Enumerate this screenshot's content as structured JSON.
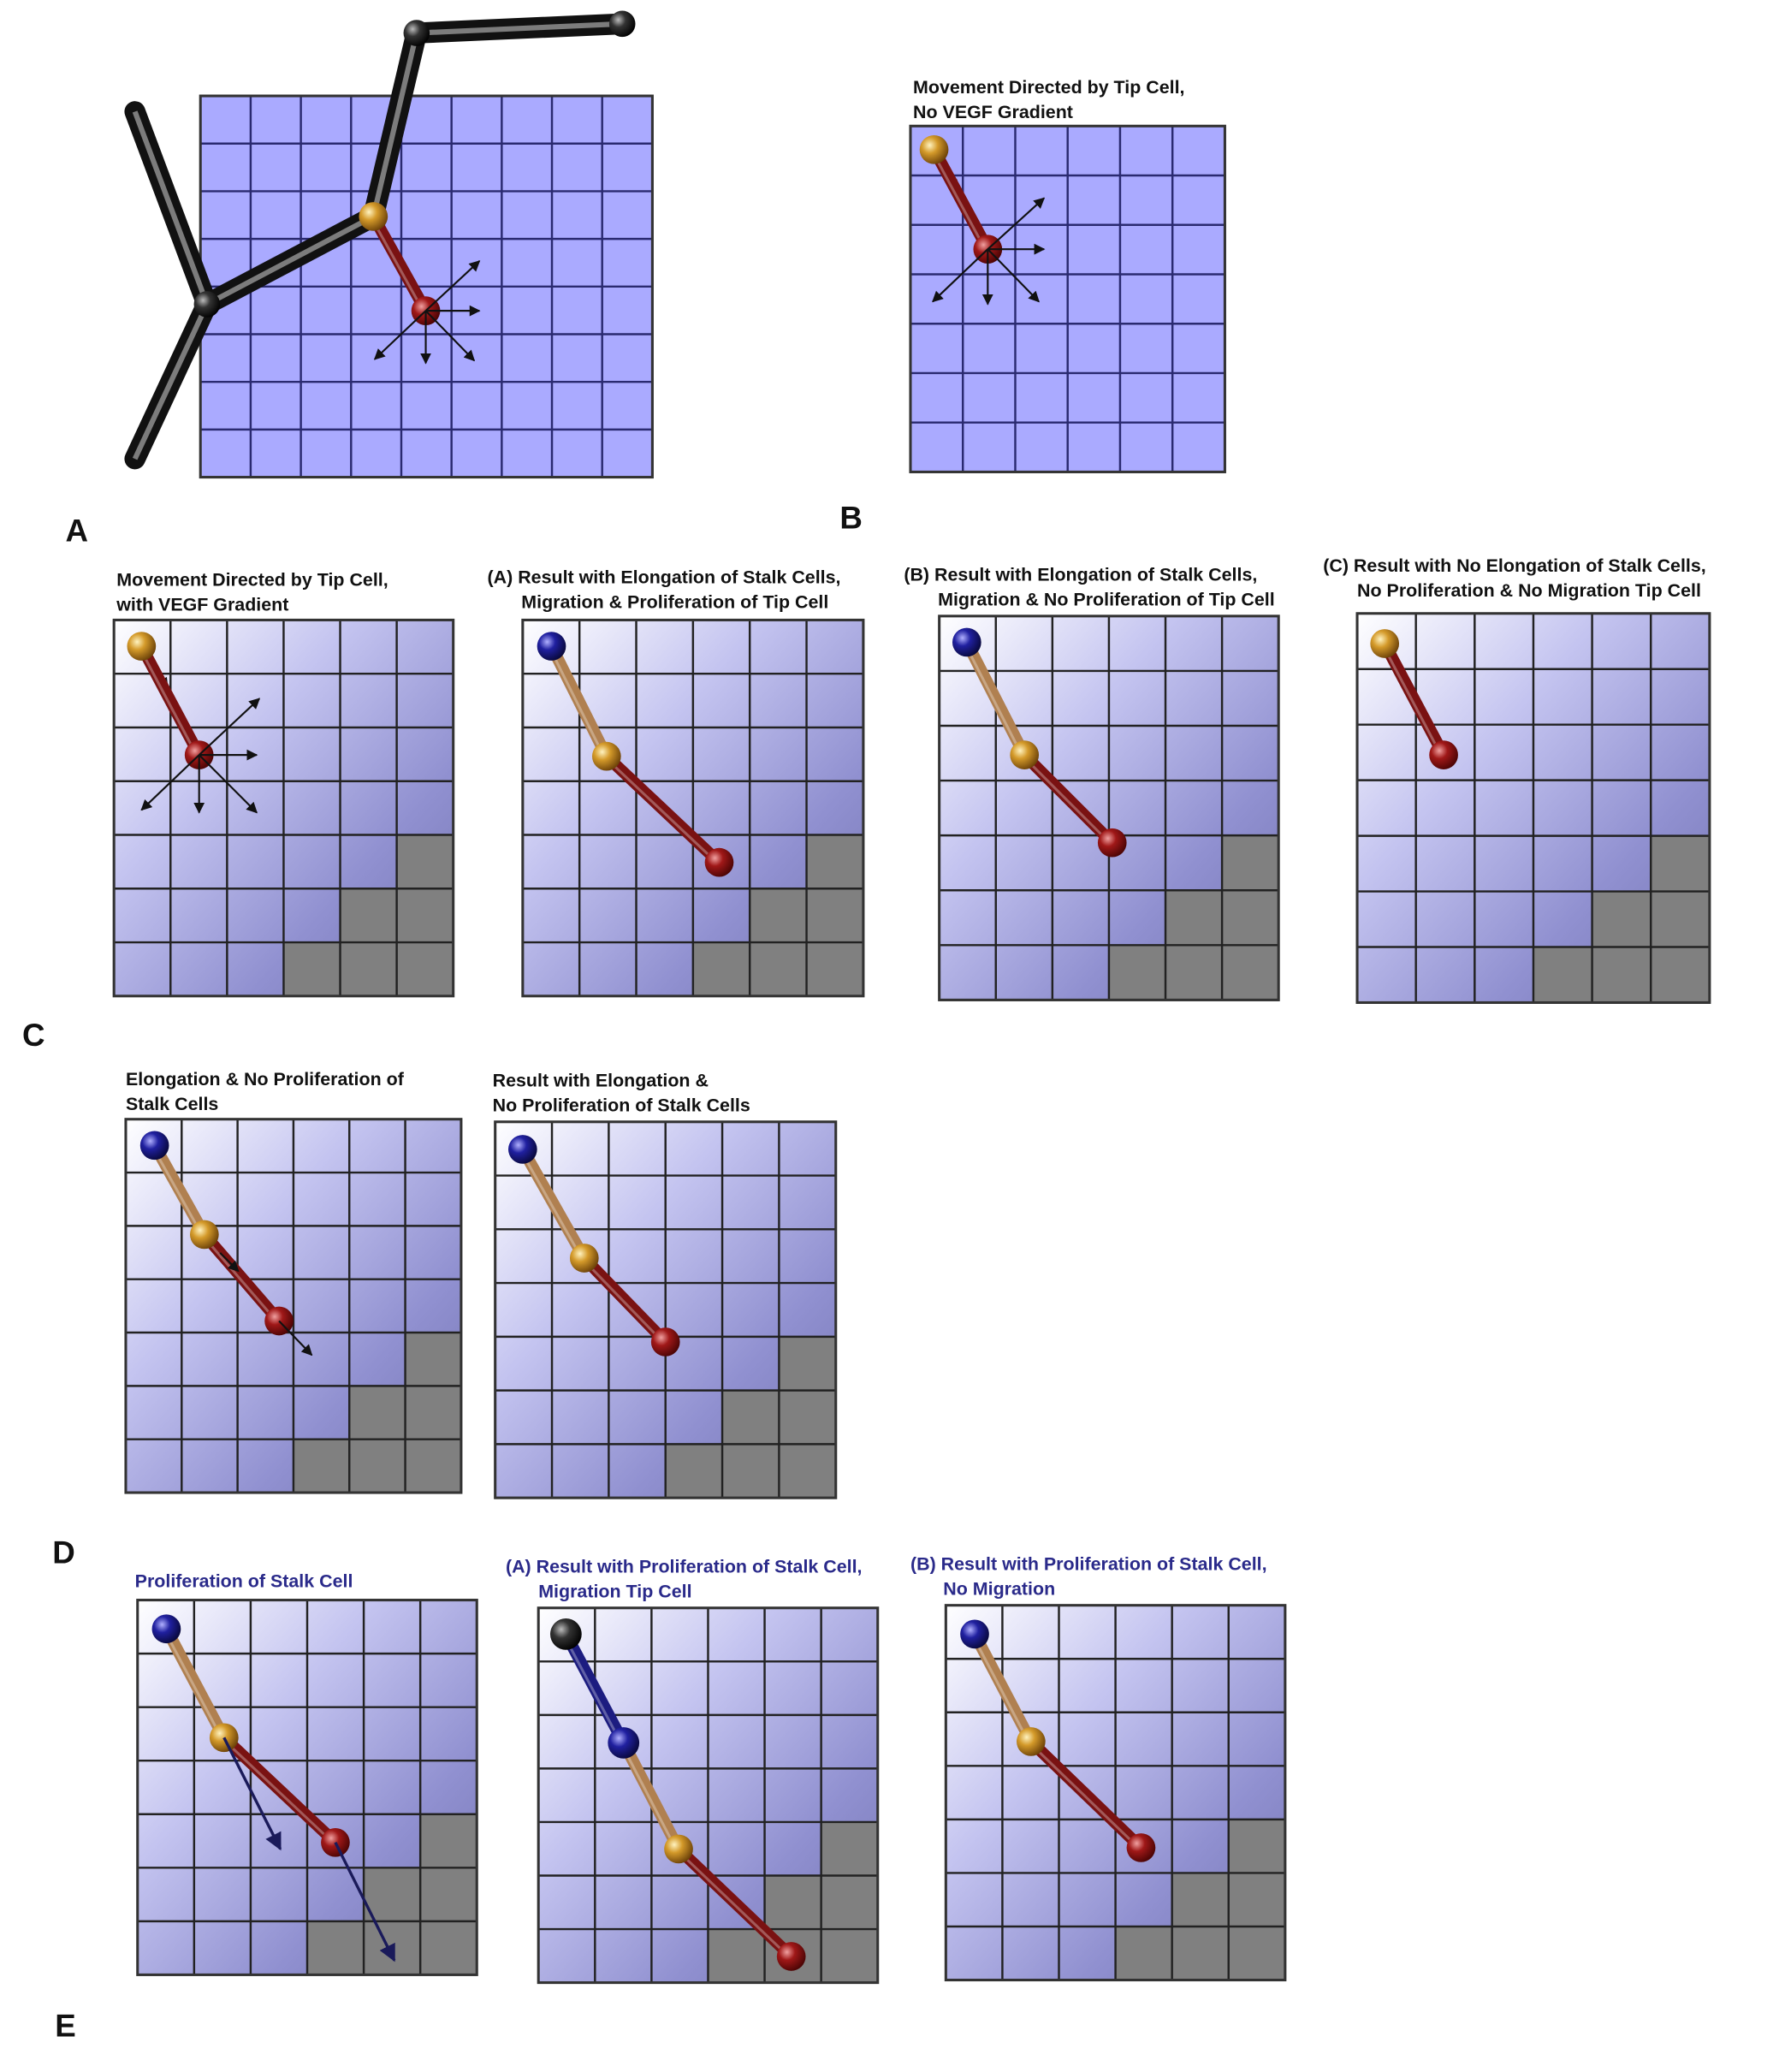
{
  "panels": [
    {
      "label": "A"
    },
    {
      "label": "B",
      "figures": [
        {
          "title": [
            "Movement Directed by Tip Cell,",
            "No VEGF Gradient"
          ]
        }
      ]
    },
    {
      "label": "C",
      "figures": [
        {
          "title": [
            "Movement Directed by Tip Cell,",
            "with VEGF Gradient"
          ]
        },
        {
          "title": [
            "(A) Result with Elongation of Stalk Cells,",
            "Migration & Proliferation of Tip Cell"
          ]
        },
        {
          "title": [
            "(B) Result with Elongation of Stalk Cells,",
            "Migration & No Proliferation of Tip Cell"
          ]
        },
        {
          "title": [
            "(C) Result with No Elongation of Stalk Cells,",
            "No Proliferation & No Migration Tip Cell"
          ]
        }
      ]
    },
    {
      "label": "D",
      "figures": [
        {
          "title": [
            "Elongation & No Proliferation of",
            "Stalk Cells"
          ]
        },
        {
          "title": [
            "Result with Elongation &",
            "No Proliferation of Stalk Cells"
          ]
        }
      ]
    },
    {
      "label": "E",
      "figures": [
        {
          "title": [
            "Proliferation of Stalk Cell"
          ]
        },
        {
          "title": [
            "(A) Result with Proliferation of Stalk Cell,",
            "Migration Tip Cell"
          ]
        },
        {
          "title": [
            "(B) Result with Proliferation of Stalk Cell,",
            "No Migration"
          ]
        }
      ]
    }
  ]
}
